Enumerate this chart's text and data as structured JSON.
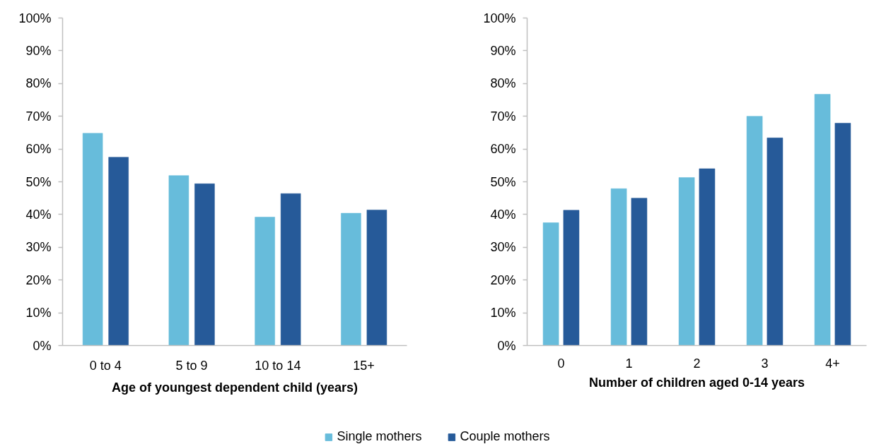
{
  "chart_data": [
    {
      "type": "bar",
      "xlabel": "Age of youngest dependent child (years)",
      "categories": [
        "0 to 4",
        "5 to 9",
        "10 to 14",
        "15+"
      ],
      "series": [
        {
          "name": "Single mothers",
          "color": "#67bcdb",
          "values": [
            64.8,
            51.9,
            39.2,
            40.4
          ]
        },
        {
          "name": "Couple mothers",
          "color": "#265a99",
          "values": [
            57.5,
            49.4,
            46.4,
            41.4
          ]
        }
      ],
      "ylim": [
        0,
        100
      ],
      "yticks": [
        {
          "value": 0,
          "label": "0%"
        },
        {
          "value": 10,
          "label": "10%"
        },
        {
          "value": 20,
          "label": "20%"
        },
        {
          "value": 30,
          "label": "30%"
        },
        {
          "value": 40,
          "label": "40%"
        },
        {
          "value": 50,
          "label": "50%"
        },
        {
          "value": 60,
          "label": "60%"
        },
        {
          "value": 70,
          "label": "70%"
        },
        {
          "value": 80,
          "label": "80%"
        },
        {
          "value": 90,
          "label": "90%"
        },
        {
          "value": 100,
          "label": "100%"
        }
      ],
      "legend": "bottom"
    },
    {
      "type": "bar",
      "xlabel": "Number of children aged 0-14 years",
      "categories": [
        "0",
        "1",
        "2",
        "3",
        "4+"
      ],
      "series": [
        {
          "color": "#67bcdb",
          "values": [
            37.5,
            47.9,
            51.3,
            70.0,
            76.7
          ]
        },
        {
          "color": "#265a99",
          "values": [
            41.3,
            45.0,
            54.0,
            63.4,
            67.9
          ]
        }
      ],
      "ylim": [
        0,
        100
      ],
      "yticks": [
        {
          "value": 0,
          "label": "0%"
        },
        {
          "value": 10,
          "label": "10%"
        },
        {
          "value": 20,
          "label": "20%"
        },
        {
          "value": 30,
          "label": "30%"
        },
        {
          "value": 40,
          "label": "40%"
        },
        {
          "value": 50,
          "label": "50%"
        },
        {
          "value": 60,
          "label": "60%"
        },
        {
          "value": 70,
          "label": "70%"
        },
        {
          "value": 80,
          "label": "80%"
        },
        {
          "value": 90,
          "label": "90%"
        },
        {
          "value": 100,
          "label": "100%"
        }
      ]
    }
  ]
}
